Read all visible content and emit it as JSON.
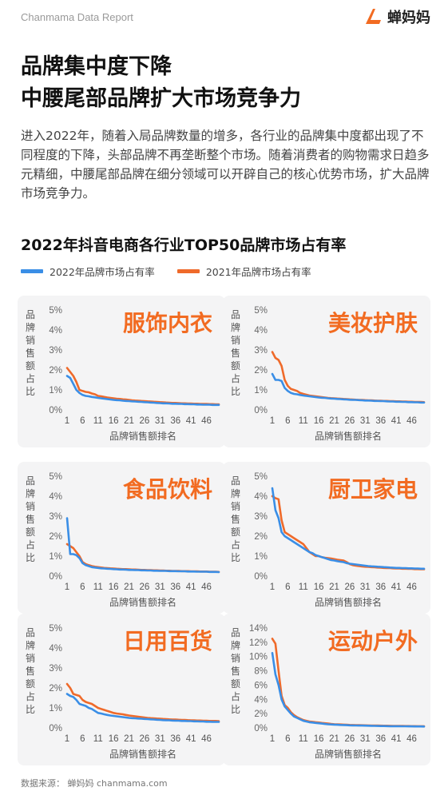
{
  "header": {
    "report_label": "Chanmama Data Report",
    "brand_name": "蝉妈妈"
  },
  "headline": {
    "line1": "品牌集中度下降",
    "line2": "中腰尾部品牌扩大市场竞争力"
  },
  "intro": {
    "text": "进入2022年，随着入局品牌数量的增多，各行业的品牌集中度都出现了不同程度的下降，头部品牌不再垄断整个市场。随着消费者的购物需求日趋多元精细，中腰尾部品牌在细分领域可以开辟自己的核心优势市场，扩大品牌市场竞争力。"
  },
  "chart_title": "2022年抖音电商各行业TOP50品牌市场占有率",
  "legend": {
    "s2022": "2022年品牌市场占有率",
    "s2021": "2021年品牌市场占有率"
  },
  "colors": {
    "s2022": "#3a8ee6",
    "s2021": "#ef6a2a",
    "category": "#f26b21",
    "brand": "#f26b21"
  },
  "footer": {
    "source": "数据来源：  蝉妈妈  chanmama.com"
  },
  "chart_data": [
    {
      "type": "line",
      "title": "服饰内衣",
      "xlabel": "品牌销售额排名",
      "ylabel": "品牌销售额占比",
      "x_ticks": [
        "1",
        "6",
        "11",
        "16",
        "21",
        "26",
        "31",
        "36",
        "41",
        "46"
      ],
      "y_ticks": [
        "0%",
        "1%",
        "2%",
        "3%",
        "4%",
        "5%"
      ],
      "ylim": [
        0,
        5
      ],
      "x": [
        1,
        2,
        3,
        4,
        5,
        6,
        7,
        8,
        9,
        10,
        11,
        12,
        13,
        14,
        15,
        16,
        17,
        18,
        19,
        20,
        21,
        22,
        23,
        24,
        25,
        26,
        27,
        28,
        29,
        30,
        31,
        32,
        33,
        34,
        35,
        36,
        37,
        38,
        39,
        40,
        41,
        42,
        43,
        44,
        45,
        46,
        47,
        48,
        49,
        50
      ],
      "series": [
        {
          "name": "2022年品牌市场占有率",
          "values": [
            1.7,
            1.6,
            1.3,
            1.0,
            0.85,
            0.75,
            0.7,
            0.68,
            0.65,
            0.63,
            0.6,
            0.58,
            0.56,
            0.54,
            0.52,
            0.5,
            0.49,
            0.48,
            0.46,
            0.45,
            0.44,
            0.43,
            0.42,
            0.41,
            0.4,
            0.39,
            0.38,
            0.37,
            0.36,
            0.35,
            0.34,
            0.33,
            0.33,
            0.32,
            0.31,
            0.31,
            0.3,
            0.3,
            0.29,
            0.29,
            0.28,
            0.28,
            0.27,
            0.27,
            0.26,
            0.26,
            0.26,
            0.25,
            0.25,
            0.25
          ]
        },
        {
          "name": "2021年品牌市场占有率",
          "values": [
            2.1,
            1.9,
            1.7,
            1.4,
            1.0,
            0.95,
            0.9,
            0.88,
            0.82,
            0.78,
            0.7,
            0.68,
            0.65,
            0.62,
            0.6,
            0.58,
            0.56,
            0.55,
            0.53,
            0.52,
            0.5,
            0.48,
            0.47,
            0.46,
            0.45,
            0.44,
            0.43,
            0.42,
            0.41,
            0.4,
            0.39,
            0.38,
            0.37,
            0.36,
            0.35,
            0.35,
            0.34,
            0.33,
            0.33,
            0.32,
            0.32,
            0.31,
            0.31,
            0.3,
            0.3,
            0.3,
            0.29,
            0.29,
            0.28,
            0.28
          ]
        }
      ]
    },
    {
      "type": "line",
      "title": "美妆护肤",
      "xlabel": "品牌销售额排名",
      "ylabel": "品牌销售额占比",
      "x_ticks": [
        "1",
        "6",
        "11",
        "16",
        "21",
        "26",
        "31",
        "36",
        "41",
        "46"
      ],
      "y_ticks": [
        "0%",
        "1%",
        "2%",
        "3%",
        "4%",
        "5%"
      ],
      "ylim": [
        0,
        5
      ],
      "x": [
        1,
        2,
        3,
        4,
        5,
        6,
        7,
        8,
        9,
        10,
        11,
        12,
        13,
        14,
        15,
        16,
        17,
        18,
        19,
        20,
        21,
        22,
        23,
        24,
        25,
        26,
        27,
        28,
        29,
        30,
        31,
        32,
        33,
        34,
        35,
        36,
        37,
        38,
        39,
        40,
        41,
        42,
        43,
        44,
        45,
        46,
        47,
        48,
        49,
        50
      ],
      "series": [
        {
          "name": "2022年品牌市场占有率",
          "values": [
            1.8,
            1.5,
            1.5,
            1.45,
            1.1,
            0.95,
            0.85,
            0.8,
            0.78,
            0.75,
            0.72,
            0.7,
            0.68,
            0.66,
            0.64,
            0.62,
            0.61,
            0.6,
            0.58,
            0.57,
            0.56,
            0.55,
            0.54,
            0.53,
            0.52,
            0.51,
            0.5,
            0.5,
            0.49,
            0.48,
            0.47,
            0.47,
            0.46,
            0.45,
            0.45,
            0.44,
            0.44,
            0.43,
            0.42,
            0.42,
            0.41,
            0.41,
            0.4,
            0.4,
            0.39,
            0.39,
            0.38,
            0.38,
            0.37,
            0.37
          ]
        },
        {
          "name": "2021年品牌市场占有率",
          "values": [
            2.9,
            2.6,
            2.5,
            2.2,
            1.5,
            1.2,
            1.05,
            1.0,
            0.95,
            0.85,
            0.8,
            0.76,
            0.72,
            0.7,
            0.68,
            0.66,
            0.64,
            0.62,
            0.6,
            0.59,
            0.58,
            0.57,
            0.56,
            0.55,
            0.54,
            0.53,
            0.52,
            0.51,
            0.5,
            0.5,
            0.49,
            0.48,
            0.48,
            0.47,
            0.46,
            0.46,
            0.45,
            0.45,
            0.44,
            0.44,
            0.43,
            0.43,
            0.42,
            0.42,
            0.41,
            0.41,
            0.4,
            0.4,
            0.4,
            0.39
          ]
        }
      ]
    },
    {
      "type": "line",
      "title": "食品饮料",
      "xlabel": "品牌销售额排名",
      "ylabel": "品牌销售额占比",
      "x_ticks": [
        "1",
        "6",
        "11",
        "16",
        "21",
        "26",
        "31",
        "36",
        "41",
        "46"
      ],
      "y_ticks": [
        "0%",
        "1%",
        "2%",
        "3%",
        "4%",
        "5%"
      ],
      "ylim": [
        0,
        5
      ],
      "x": [
        1,
        2,
        3,
        4,
        5,
        6,
        7,
        8,
        9,
        10,
        11,
        12,
        13,
        14,
        15,
        16,
        17,
        18,
        19,
        20,
        21,
        22,
        23,
        24,
        25,
        26,
        27,
        28,
        29,
        30,
        31,
        32,
        33,
        34,
        35,
        36,
        37,
        38,
        39,
        40,
        41,
        42,
        43,
        44,
        45,
        46,
        47,
        48,
        49,
        50
      ],
      "series": [
        {
          "name": "2022年品牌市场占有率",
          "values": [
            2.9,
            1.1,
            1.1,
            1.05,
            0.9,
            0.65,
            0.55,
            0.5,
            0.45,
            0.43,
            0.41,
            0.39,
            0.38,
            0.37,
            0.36,
            0.35,
            0.34,
            0.33,
            0.33,
            0.32,
            0.31,
            0.31,
            0.3,
            0.3,
            0.29,
            0.29,
            0.28,
            0.28,
            0.27,
            0.27,
            0.26,
            0.26,
            0.26,
            0.25,
            0.25,
            0.25,
            0.24,
            0.24,
            0.24,
            0.23,
            0.23,
            0.23,
            0.22,
            0.22,
            0.22,
            0.22,
            0.21,
            0.21,
            0.21,
            0.2
          ]
        },
        {
          "name": "2021年品牌市场占有率",
          "values": [
            1.6,
            1.5,
            1.4,
            1.2,
            1.0,
            0.7,
            0.6,
            0.55,
            0.5,
            0.47,
            0.45,
            0.43,
            0.41,
            0.4,
            0.39,
            0.38,
            0.37,
            0.36,
            0.35,
            0.35,
            0.34,
            0.33,
            0.33,
            0.32,
            0.31,
            0.31,
            0.3,
            0.3,
            0.29,
            0.29,
            0.28,
            0.28,
            0.27,
            0.27,
            0.26,
            0.26,
            0.26,
            0.25,
            0.25,
            0.25,
            0.24,
            0.24,
            0.24,
            0.23,
            0.23,
            0.23,
            0.22,
            0.22,
            0.22,
            0.21
          ]
        }
      ]
    },
    {
      "type": "line",
      "title": "厨卫家电",
      "xlabel": "品牌销售额排名",
      "ylabel": "品牌销售额占比",
      "x_ticks": [
        "1",
        "6",
        "11",
        "16",
        "21",
        "26",
        "31",
        "36",
        "41",
        "46"
      ],
      "y_ticks": [
        "0%",
        "1%",
        "2%",
        "3%",
        "4%",
        "5%"
      ],
      "ylim": [
        0,
        5
      ],
      "x": [
        1,
        2,
        3,
        4,
        5,
        6,
        7,
        8,
        9,
        10,
        11,
        12,
        13,
        14,
        15,
        16,
        17,
        18,
        19,
        20,
        21,
        22,
        23,
        24,
        25,
        26,
        27,
        28,
        29,
        30,
        31,
        32,
        33,
        34,
        35,
        36,
        37,
        38,
        39,
        40,
        41,
        42,
        43,
        44,
        45,
        46,
        47,
        48,
        49,
        50
      ],
      "series": [
        {
          "name": "2022年品牌市场占有率",
          "values": [
            4.4,
            3.3,
            2.9,
            2.2,
            2.0,
            1.9,
            1.8,
            1.7,
            1.6,
            1.5,
            1.4,
            1.3,
            1.2,
            1.15,
            1.05,
            1.0,
            0.95,
            0.9,
            0.85,
            0.8,
            0.78,
            0.75,
            0.72,
            0.7,
            0.65,
            0.62,
            0.6,
            0.58,
            0.56,
            0.54,
            0.52,
            0.5,
            0.49,
            0.48,
            0.47,
            0.46,
            0.45,
            0.44,
            0.43,
            0.42,
            0.41,
            0.41,
            0.4,
            0.4,
            0.39,
            0.39,
            0.38,
            0.38,
            0.37,
            0.37
          ]
        },
        {
          "name": "2021年品牌市场占有率",
          "values": [
            4.0,
            3.9,
            3.85,
            2.8,
            2.2,
            2.1,
            2.0,
            1.9,
            1.8,
            1.7,
            1.6,
            1.4,
            1.2,
            1.1,
            1.0,
            1.0,
            0.95,
            0.92,
            0.9,
            0.88,
            0.85,
            0.82,
            0.8,
            0.78,
            0.7,
            0.6,
            0.55,
            0.52,
            0.5,
            0.48,
            0.47,
            0.46,
            0.45,
            0.44,
            0.43,
            0.42,
            0.41,
            0.4,
            0.4,
            0.39,
            0.38,
            0.38,
            0.37,
            0.37,
            0.36,
            0.36,
            0.35,
            0.35,
            0.34,
            0.34
          ]
        }
      ]
    },
    {
      "type": "line",
      "title": "日用百货",
      "xlabel": "品牌销售额排名",
      "ylabel": "品牌销售额占比",
      "x_ticks": [
        "1",
        "6",
        "11",
        "16",
        "21",
        "26",
        "31",
        "36",
        "41",
        "46"
      ],
      "y_ticks": [
        "0%",
        "1%",
        "2%",
        "3%",
        "4%",
        "5%"
      ],
      "ylim": [
        0,
        5
      ],
      "x": [
        1,
        2,
        3,
        4,
        5,
        6,
        7,
        8,
        9,
        10,
        11,
        12,
        13,
        14,
        15,
        16,
        17,
        18,
        19,
        20,
        21,
        22,
        23,
        24,
        25,
        26,
        27,
        28,
        29,
        30,
        31,
        32,
        33,
        34,
        35,
        36,
        37,
        38,
        39,
        40,
        41,
        42,
        43,
        44,
        45,
        46,
        47,
        48,
        49,
        50
      ],
      "series": [
        {
          "name": "2022年品牌市场占有率",
          "values": [
            1.7,
            1.6,
            1.55,
            1.4,
            1.2,
            1.15,
            1.1,
            1.0,
            0.95,
            0.85,
            0.75,
            0.72,
            0.68,
            0.65,
            0.62,
            0.6,
            0.58,
            0.56,
            0.54,
            0.52,
            0.5,
            0.49,
            0.48,
            0.47,
            0.46,
            0.45,
            0.44,
            0.43,
            0.42,
            0.41,
            0.4,
            0.39,
            0.38,
            0.38,
            0.37,
            0.36,
            0.36,
            0.35,
            0.35,
            0.34,
            0.34,
            0.33,
            0.33,
            0.32,
            0.32,
            0.31,
            0.31,
            0.3,
            0.3,
            0.3
          ]
        },
        {
          "name": "2021年品牌市场占有率",
          "values": [
            2.2,
            2.0,
            1.7,
            1.65,
            1.6,
            1.4,
            1.3,
            1.25,
            1.2,
            1.1,
            1.0,
            0.95,
            0.9,
            0.85,
            0.8,
            0.75,
            0.72,
            0.7,
            0.68,
            0.65,
            0.62,
            0.6,
            0.58,
            0.56,
            0.54,
            0.52,
            0.5,
            0.49,
            0.48,
            0.47,
            0.46,
            0.45,
            0.44,
            0.43,
            0.42,
            0.42,
            0.41,
            0.4,
            0.4,
            0.39,
            0.38,
            0.38,
            0.37,
            0.37,
            0.36,
            0.36,
            0.35,
            0.35,
            0.35,
            0.34
          ]
        }
      ]
    },
    {
      "type": "line",
      "title": "运动户外",
      "xlabel": "品牌销售额排名",
      "ylabel": "品牌销售额占比",
      "x_ticks": [
        "1",
        "6",
        "11",
        "16",
        "21",
        "26",
        "31",
        "36",
        "41",
        "46"
      ],
      "y_ticks": [
        "0%",
        "2%",
        "4%",
        "6%",
        "8%",
        "10%",
        "12%",
        "14%"
      ],
      "ylim": [
        0,
        14
      ],
      "x": [
        1,
        2,
        3,
        4,
        5,
        6,
        7,
        8,
        9,
        10,
        11,
        12,
        13,
        14,
        15,
        16,
        17,
        18,
        19,
        20,
        21,
        22,
        23,
        24,
        25,
        26,
        27,
        28,
        29,
        30,
        31,
        32,
        33,
        34,
        35,
        36,
        37,
        38,
        39,
        40,
        41,
        42,
        43,
        44,
        45,
        46,
        47,
        48,
        49,
        50
      ],
      "series": [
        {
          "name": "2022年品牌市场占有率",
          "values": [
            10.5,
            7.5,
            6.0,
            4.0,
            3.0,
            2.5,
            2.0,
            1.6,
            1.4,
            1.2,
            1.0,
            0.9,
            0.8,
            0.75,
            0.7,
            0.65,
            0.6,
            0.55,
            0.5,
            0.48,
            0.46,
            0.44,
            0.42,
            0.4,
            0.38,
            0.36,
            0.35,
            0.34,
            0.33,
            0.32,
            0.31,
            0.3,
            0.29,
            0.28,
            0.27,
            0.26,
            0.26,
            0.25,
            0.24,
            0.24,
            0.23,
            0.23,
            0.22,
            0.22,
            0.21,
            0.21,
            0.2,
            0.2,
            0.2,
            0.19
          ]
        },
        {
          "name": "2021年品牌市场占有率",
          "values": [
            12.5,
            11.8,
            8.0,
            4.5,
            3.2,
            2.8,
            2.2,
            1.8,
            1.5,
            1.3,
            1.1,
            1.0,
            0.9,
            0.85,
            0.8,
            0.75,
            0.7,
            0.65,
            0.6,
            0.55,
            0.52,
            0.5,
            0.48,
            0.46,
            0.44,
            0.42,
            0.4,
            0.39,
            0.38,
            0.37,
            0.36,
            0.35,
            0.34,
            0.33,
            0.32,
            0.31,
            0.3,
            0.3,
            0.29,
            0.28,
            0.28,
            0.27,
            0.27,
            0.26,
            0.26,
            0.25,
            0.25,
            0.24,
            0.24,
            0.24
          ]
        }
      ]
    }
  ]
}
